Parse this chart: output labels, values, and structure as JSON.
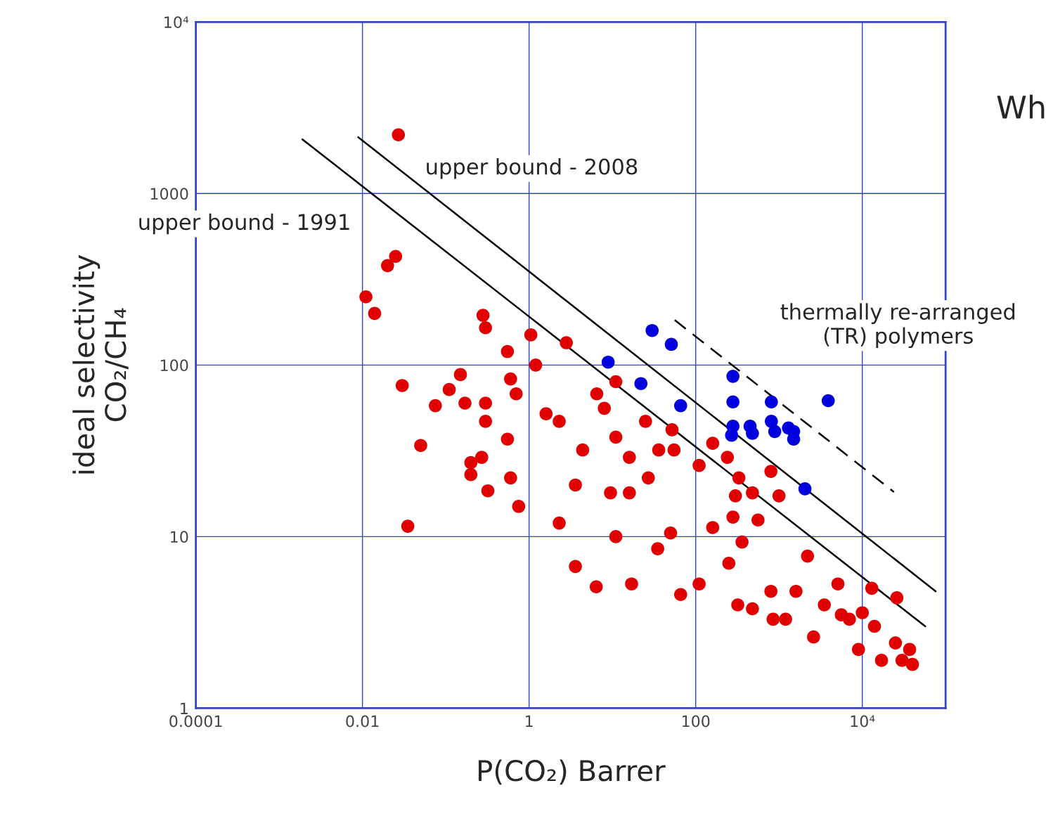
{
  "chart_data": {
    "type": "scatter",
    "xlabel": "P(CO₂) Barrer",
    "ylabel": "ideal selectivity\nCO₂/CH₄",
    "log": "xy",
    "xlim": [
      0.0001,
      100000
    ],
    "ylim": [
      1,
      10000
    ],
    "xticks": [
      0.0001,
      0.01,
      1,
      100,
      {
        "value": 10000,
        "label": "10⁴"
      }
    ],
    "yticks": [
      1,
      10,
      100,
      1000,
      {
        "value": 10000,
        "label": "10⁴"
      }
    ],
    "grid": true,
    "series": [
      {
        "color": "#e00000",
        "marker": "circle",
        "x": [
          0.027,
          0.025,
          0.02,
          0.011,
          0.014,
          0.03,
          0.035,
          0.05,
          0.075,
          0.11,
          0.15,
          0.17,
          0.2,
          0.2,
          0.28,
          0.3,
          0.3,
          0.3,
          0.32,
          0.27,
          0.55,
          0.75,
          1.05,
          1.2,
          2.8,
          0.6,
          0.55,
          0.6,
          0.7,
          2.3,
          4.4,
          8,
          11,
          16,
          25,
          36,
          52,
          9.5,
          6.5,
          1.6,
          3.6,
          11,
          16,
          27,
          55,
          110,
          160,
          240,
          330,
          480,
          2.3,
          3.6,
          6.4,
          11,
          17,
          35,
          50,
          66,
          110,
          160,
          250,
          320,
          480,
          800,
          360,
          560,
          1000,
          1200,
          1600,
          2200,
          2600,
          3500,
          5100,
          7000,
          9000,
          14000,
          17000,
          25000,
          30000,
          40000,
          37000,
          13000,
          26000,
          10000,
          5600,
          850,
          800,
          300,
          280
        ],
        "values": [
          2200,
          430,
          380,
          250,
          200,
          76,
          11.5,
          34,
          58,
          72,
          88,
          60,
          27,
          23,
          195,
          165,
          47,
          60,
          18.5,
          29,
          120,
          15,
          150,
          100,
          135,
          83,
          37,
          22,
          68,
          47,
          32,
          56,
          38,
          29,
          47,
          32,
          42,
          18,
          68,
          52,
          20,
          80,
          18,
          22,
          32,
          26,
          35,
          29,
          22,
          18,
          12,
          6.7,
          5.1,
          10,
          5.3,
          8.5,
          10.5,
          4.6,
          5.3,
          11.3,
          7,
          4,
          3.8,
          4.8,
          9.3,
          12.5,
          17.3,
          3.3,
          4.8,
          7.7,
          2.6,
          4,
          5.3,
          3.3,
          2.2,
          3,
          1.9,
          2.4,
          1.9,
          1.8,
          2.2,
          5,
          4.4,
          3.6,
          3.5,
          3.3,
          24,
          17.3,
          13
        ]
      },
      {
        "color": "#0000dd",
        "marker": "circle",
        "x": [
          8.9,
          30,
          51,
          22,
          66,
          280,
          280,
          810,
          3900,
          280,
          450,
          270,
          480,
          810,
          890,
          1300,
          1500,
          1500,
          2050
        ],
        "values": [
          104,
          159,
          132,
          78,
          58,
          86,
          61,
          61,
          62,
          44,
          44,
          39,
          40,
          47,
          41,
          43,
          41,
          37,
          19
        ]
      },
      {
        "type": "line",
        "color": "#000000",
        "line_style": "solid",
        "x": [
          0.0019,
          57000
        ],
        "values": [
          2070,
          3.0
        ]
      },
      {
        "type": "line",
        "color": "#000000",
        "line_style": "solid",
        "x": [
          0.0089,
          76000
        ],
        "values": [
          2130,
          4.8
        ]
      },
      {
        "type": "line",
        "color": "#000000",
        "line_style": "dashed",
        "x": [
          56,
          24000
        ],
        "values": [
          183,
          18.2
        ]
      }
    ],
    "annotations": [
      "upper bound - 1991",
      "upper bound - 2008",
      "thermally re-arranged\n(TR) polymers",
      "Wh"
    ]
  }
}
